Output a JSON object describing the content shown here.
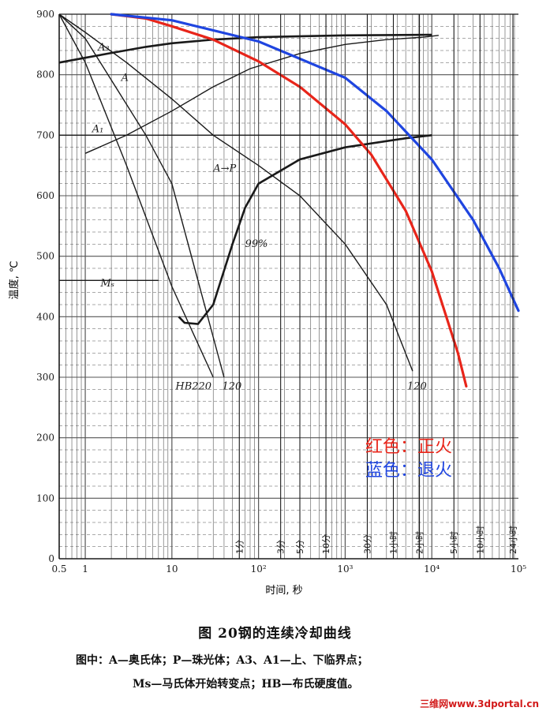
{
  "caption": {
    "title": "图   20钢的连续冷却曲线",
    "note1": "图中：A—奥氏体；P—珠光体；A3、A1—上、下临界点；",
    "note2": "Ms—马氏体开始转变点；HB—布氏硬度值。"
  },
  "watermark": "三维网www.3dportal.cn",
  "colors": {
    "normalizing": "#e8251a",
    "annealing": "#1f45e0",
    "ink": "#1a1a1a"
  },
  "chart_data": {
    "type": "line",
    "xscale": "log",
    "xlim": [
      0.5,
      100000
    ],
    "ylim": [
      0,
      900
    ],
    "ylabel": "温度, ℃",
    "xlabel": "时间, 秒",
    "yticks": [
      0,
      100,
      200,
      300,
      400,
      500,
      600,
      700,
      800,
      900
    ],
    "yticklabels": [
      "0",
      "100",
      "200",
      "300",
      "400",
      "500",
      "600",
      "700",
      "800",
      "900"
    ],
    "xticks": [
      0.5,
      1,
      10,
      100,
      1000,
      10000,
      100000
    ],
    "xticklabels": [
      "0.5",
      "1",
      "10",
      "10²",
      "10³",
      "10⁴",
      "10⁵"
    ],
    "time_markers": [
      {
        "label": "1分",
        "t": 60
      },
      {
        "label": "3分",
        "t": 180
      },
      {
        "label": "5分",
        "t": 300
      },
      {
        "label": "10分",
        "t": 600
      },
      {
        "label": "30分",
        "t": 1800
      },
      {
        "label": "1小时",
        "t": 3600
      },
      {
        "label": "2小时",
        "t": 7200
      },
      {
        "label": "5小时",
        "t": 18000
      },
      {
        "label": "10小时",
        "t": 36000
      },
      {
        "label": "24小时",
        "t": 86400
      }
    ],
    "series": [
      {
        "name": "正火",
        "color": "#e8251a",
        "x": [
          2,
          5,
          10,
          30,
          100,
          300,
          1000,
          2000,
          5000,
          10000,
          20000,
          25000
        ],
        "y": [
          900,
          893,
          880,
          858,
          822,
          780,
          718,
          668,
          575,
          475,
          340,
          285
        ]
      },
      {
        "name": "退火",
        "color": "#1f45e0",
        "x": [
          2,
          10,
          100,
          1000,
          3000,
          10000,
          30000,
          60000,
          100000
        ],
        "y": [
          900,
          890,
          855,
          795,
          740,
          660,
          560,
          480,
          410
        ]
      }
    ],
    "cct_lines": [
      {
        "label": "A3",
        "x": [
          0.5,
          1,
          2,
          5,
          10,
          30,
          100,
          1000,
          10000
        ],
        "y": [
          820,
          828,
          836,
          846,
          852,
          858,
          862,
          865,
          866
        ]
      },
      {
        "label": "A1",
        "x": [
          0.5,
          10000
        ],
        "y": [
          700,
          700
        ]
      },
      {
        "label": "Ms",
        "x": [
          0.5,
          7
        ],
        "y": [
          460,
          460
        ]
      },
      {
        "label": "A",
        "x": [
          1,
          3,
          10,
          30,
          80,
          300,
          1000,
          3000,
          8000,
          12000
        ],
        "y": [
          670,
          700,
          740,
          780,
          810,
          835,
          850,
          858,
          862,
          865
        ]
      },
      {
        "label": "A→P",
        "x": [
          12,
          14,
          20,
          30,
          50,
          70,
          100,
          300,
          1000,
          5000,
          10000
        ],
        "y": [
          400,
          390,
          388,
          420,
          520,
          580,
          620,
          660,
          680,
          695,
          700
        ]
      },
      {
        "label": "99%",
        "x": [
          0.5,
          1,
          3,
          10,
          30,
          100,
          300,
          1000,
          3000,
          6000
        ],
        "y": [
          900,
          870,
          820,
          760,
          700,
          650,
          600,
          520,
          420,
          310
        ]
      },
      {
        "label": "HB220",
        "x": [
          0.5,
          1,
          3,
          10,
          30
        ],
        "y": [
          900,
          820,
          650,
          450,
          300
        ]
      },
      {
        "label": "120",
        "x": [
          0.5,
          1,
          5,
          10,
          40
        ],
        "y": [
          900,
          860,
          700,
          620,
          300
        ]
      }
    ],
    "annotations": [
      {
        "text": "A₃",
        "x": 1.4,
        "y": 840
      },
      {
        "text": "A",
        "x": 2.6,
        "y": 790
      },
      {
        "text": "A₁",
        "x": 1.2,
        "y": 705
      },
      {
        "text": "A→P",
        "x": 30,
        "y": 640
      },
      {
        "text": "99%",
        "x": 70,
        "y": 515
      },
      {
        "text": "Mₛ",
        "x": 1.5,
        "y": 450
      },
      {
        "text": "HB220",
        "x": 11,
        "y": 280
      },
      {
        "text": "120",
        "x": 38,
        "y": 280
      },
      {
        "text": "120",
        "x": 5200,
        "y": 280
      }
    ]
  },
  "legend": {
    "items": [
      {
        "label": "红色：正火",
        "color": "#e8251a"
      },
      {
        "label": "蓝色：退火",
        "color": "#1f45e0"
      }
    ]
  }
}
